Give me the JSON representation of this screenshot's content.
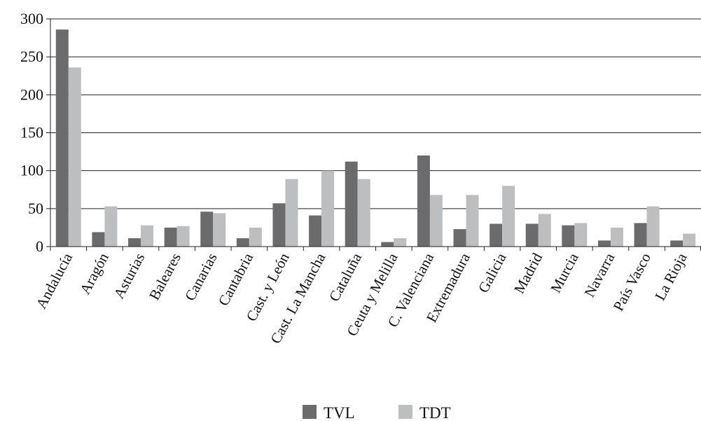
{
  "chart_data": {
    "type": "bar",
    "title": "",
    "xlabel": "",
    "ylabel": "",
    "ylim": [
      0,
      300
    ],
    "yticks": [
      0,
      50,
      100,
      150,
      200,
      250,
      300
    ],
    "grid": true,
    "legend_position": "bottom-center",
    "categories": [
      "Andalucía",
      "Aragón",
      "Asturias",
      "Baleares",
      "Canarias",
      "Cantabria",
      "Cast. y León",
      "Cast. La Mancha",
      "Cataluña",
      "Ceuta y Melilla",
      "C. Valenciana",
      "Extremadura",
      "Galicia",
      "Madrid",
      "Murcia",
      "Navarra",
      "País Vasco",
      "La Rioja"
    ],
    "series": [
      {
        "name": "TVL",
        "color": "#6b6b6e",
        "values": [
          286,
          19,
          11,
          25,
          46,
          11,
          57,
          41,
          112,
          6,
          120,
          23,
          30,
          30,
          28,
          8,
          31,
          8
        ]
      },
      {
        "name": "TDT",
        "color": "#bdbec0",
        "values": [
          236,
          53,
          28,
          27,
          44,
          25,
          89,
          100,
          89,
          11,
          68,
          68,
          80,
          43,
          31,
          25,
          53,
          17
        ]
      }
    ]
  }
}
